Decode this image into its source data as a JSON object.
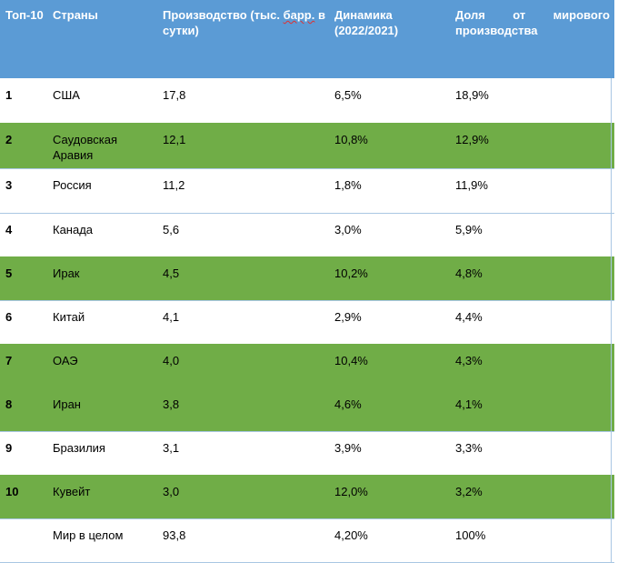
{
  "header": {
    "rank": "Топ-10",
    "country": "Страны",
    "production_prefix": "Производство (тыс. ",
    "production_barr": "барр.",
    "production_suffix": " в сутки)",
    "dynamics": "Динамика (2022/2021)",
    "share_line1": [
      "Доля",
      "от",
      "мирового"
    ],
    "share_line2": "производства"
  },
  "colors": {
    "header_bg": "#5b9bd5",
    "green_row_bg": "#70ad47",
    "white_row_bg": "#ffffff"
  },
  "rows": [
    {
      "rank": "1",
      "country": "США",
      "production": "17,8",
      "dynamics": "6,5%",
      "share": "18,9%",
      "green": false
    },
    {
      "rank": "2",
      "country": "Саудовская Аравия",
      "production": "12,1",
      "dynamics": "10,8%",
      "share": "12,9%",
      "green": true
    },
    {
      "rank": "3",
      "country": "Россия",
      "production": "11,2",
      "dynamics": "1,8%",
      "share": "11,9%",
      "green": false
    },
    {
      "rank": "4",
      "country": "Канада",
      "production": "5,6",
      "dynamics": "3,0%",
      "share": "5,9%",
      "green": false
    },
    {
      "rank": "5",
      "country": "Ирак",
      "production": "4,5",
      "dynamics": "10,2%",
      "share": "4,8%",
      "green": true
    },
    {
      "rank": "6",
      "country": "Китай",
      "production": "4,1",
      "dynamics": "2,9%",
      "share": "4,4%",
      "green": false
    },
    {
      "rank": "7",
      "country": "ОАЭ",
      "production": "4,0",
      "dynamics": "10,4%",
      "share": "4,3%",
      "green": true
    },
    {
      "rank": "8",
      "country": "Иран",
      "production": "3,8",
      "dynamics": "4,6%",
      "share": "4,1%",
      "green": true
    },
    {
      "rank": "9",
      "country": "Бразилия",
      "production": "3,1",
      "dynamics": "3,9%",
      "share": "3,3%",
      "green": false
    },
    {
      "rank": "10",
      "country": "Кувейт",
      "production": "3,0",
      "dynamics": "12,0%",
      "share": "3,2%",
      "green": true
    },
    {
      "rank": "",
      "country": "Мир в целом",
      "production": "93,8",
      "dynamics": "4,20%",
      "share": "100%",
      "green": false
    }
  ]
}
